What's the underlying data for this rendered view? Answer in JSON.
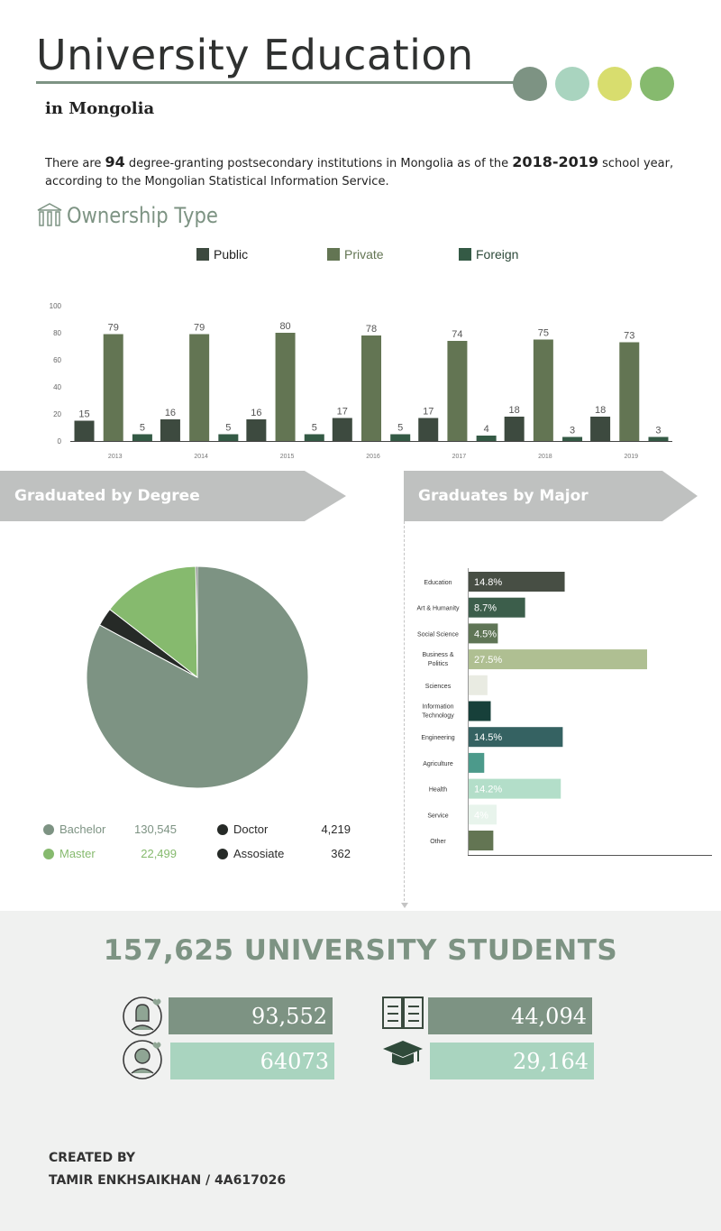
{
  "header": {
    "title": "University Education",
    "subtitle": "in Mongolia",
    "dot_colors": [
      "#7d9383",
      "#a9d4bf",
      "#d8dd6e",
      "#86ba6e"
    ]
  },
  "intro": {
    "before_count": "There are ",
    "count": "94",
    "middle": " degree-granting postsecondary institutions in Mongolia as of the ",
    "year": "2018-2019",
    "after": " school year, according to the Mongolian Statistical Information Service."
  },
  "ownership": {
    "title": "Ownership Type",
    "icon": "institution-icon"
  },
  "chart_data": [
    {
      "type": "bar",
      "title": "Ownership Type",
      "categories": [
        "2013",
        "2014",
        "2015",
        "2016",
        "2017",
        "2018",
        "2019"
      ],
      "series": [
        {
          "name": "Public",
          "color": "#3d4a3f",
          "values": [
            15,
            16,
            16,
            17,
            17,
            18,
            18
          ]
        },
        {
          "name": "Private",
          "color": "#637553",
          "values": [
            79,
            79,
            80,
            78,
            74,
            75,
            73
          ]
        },
        {
          "name": "Foreign",
          "color": "#345a45",
          "values": [
            5,
            5,
            5,
            5,
            4,
            3,
            3
          ]
        }
      ],
      "ylim": [
        0,
        100
      ],
      "yticks": [
        "0",
        "20",
        "40",
        "60",
        "80",
        "100"
      ],
      "legend": "top",
      "grid": false,
      "data_labels": true
    },
    {
      "type": "pie",
      "title": "Graduated by Degree",
      "slices": [
        {
          "label": "Bachelor",
          "value": 130545,
          "display": "130,545",
          "color": "#7d9383"
        },
        {
          "label": "Doctor",
          "value": 4219,
          "display": "4,219",
          "color": "#262a27"
        },
        {
          "label": "Master",
          "value": 22499,
          "display": "22,499",
          "color": "#86ba6e"
        },
        {
          "label": "Assosiate",
          "value": 362,
          "display": "362",
          "color": "#262a27"
        }
      ],
      "legend": "bottom"
    },
    {
      "type": "bar",
      "orientation": "horizontal",
      "title": "Graduates by Major",
      "categories": [
        {
          "lines": [
            "Education"
          ],
          "value": 14.8,
          "label": "14.8%",
          "color": "#474e44",
          "label_color": "#ffffff"
        },
        {
          "lines": [
            "Art & Humanity"
          ],
          "value": 8.7,
          "label": "8.7%",
          "color": "#3c5e4b",
          "label_color": "#ffffff"
        },
        {
          "lines": [
            "Social Science"
          ],
          "value": 4.5,
          "label": "4.5%",
          "color": "#5f7556",
          "label_color": "#ffffff"
        },
        {
          "lines": [
            "Business &",
            "Politics"
          ],
          "value": 27.5,
          "label": "27.5%",
          "color": "#afbf92",
          "label_color": "#ffffff"
        },
        {
          "lines": [
            "Sciences"
          ],
          "value": 2.9,
          "label": "",
          "color": "#e9ebe2",
          "label_color": "#ffffff"
        },
        {
          "lines": [
            "Information",
            "Technology"
          ],
          "value": 3.4,
          "label": "",
          "color": "#17403a",
          "label_color": "#ffffff"
        },
        {
          "lines": [
            "Engineering"
          ],
          "value": 14.5,
          "label": "14.5%",
          "color": "#356262",
          "label_color": "#ffffff"
        },
        {
          "lines": [
            "Agriculture"
          ],
          "value": 2.4,
          "label": "",
          "color": "#4c9a8b",
          "label_color": "#ffffff"
        },
        {
          "lines": [
            "Health"
          ],
          "value": 14.2,
          "label": "14.2%",
          "color": "#b3dec9",
          "label_color": "#ffffff"
        },
        {
          "lines": [
            "Service"
          ],
          "value": 4.3,
          "label": "4%",
          "color": "#e8f4ec",
          "label_color": "#ffffff"
        },
        {
          "lines": [
            "Other"
          ],
          "value": 3.8,
          "label": "",
          "color": "#637553",
          "label_color": "#ffffff"
        }
      ],
      "xlim": [
        0,
        40
      ]
    }
  ],
  "banners": {
    "degree": "Graduated by Degree",
    "major": "Graduates by Major"
  },
  "summary": {
    "total": "157,625 UNIVERSITY STUDENTS",
    "stats": [
      {
        "icon": "female-student-icon",
        "value": "93,552",
        "color": "#7d9383"
      },
      {
        "icon": "open-book-icon",
        "value": "44,094",
        "color": "#7d9383"
      },
      {
        "icon": "male-student-icon",
        "value": "64073",
        "color": "#a9d4bf"
      },
      {
        "icon": "graduation-cap-icon",
        "value": "29,164",
        "color": "#a9d4bf"
      }
    ]
  },
  "credits": {
    "label": "CREATED BY",
    "author": "TAMIR ENKHSAIKHAN / 4A617026"
  }
}
